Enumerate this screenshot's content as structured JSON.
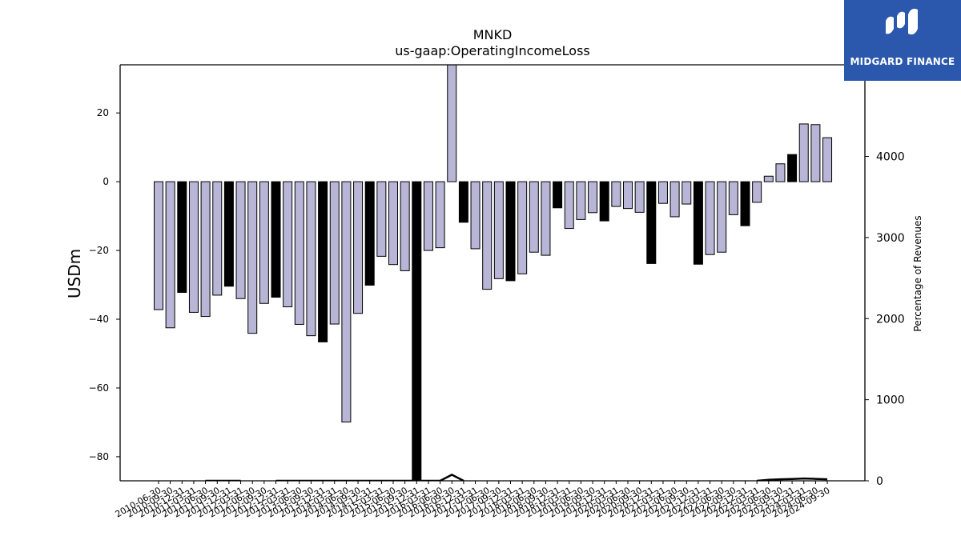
{
  "chart_data": {
    "type": "bar",
    "title": "MNKD",
    "subtitle": "us-gaap:OperatingIncomeLoss",
    "ylabel": "USDm",
    "y2label": "Percentage of Revenues",
    "ylim": [
      -87,
      34
    ],
    "y2lim": [
      0,
      5130
    ],
    "yticks": [
      -80,
      -60,
      -40,
      -20,
      0,
      20
    ],
    "y2ticks": [
      0,
      1000,
      2000,
      3000,
      4000
    ],
    "colors": {
      "quarter": "#b8b5d6",
      "annual": "#000000",
      "edge": "#000000",
      "line": "#000000"
    },
    "categories": [
      "2010-06-30",
      "2010-09-30",
      "2010-12-31",
      "2011-03-31",
      "2011-06-30",
      "2011-09-30",
      "2011-12-31",
      "2012-03-31",
      "2012-06-30",
      "2012-09-30",
      "2012-12-31",
      "2013-03-31",
      "2013-06-30",
      "2013-09-30",
      "2013-12-31",
      "2014-03-31",
      "2014-06-30",
      "2014-09-30",
      "2014-12-31",
      "2015-03-31",
      "2015-06-30",
      "2015-09-30",
      "2015-12-31",
      "2016-03-31",
      "2016-06-30",
      "2016-09-30",
      "2016-12-31",
      "2017-03-31",
      "2017-06-30",
      "2017-09-30",
      "2017-12-31",
      "2018-03-31",
      "2018-06-30",
      "2018-09-30",
      "2018-12-31",
      "2019-03-31",
      "2019-06-30",
      "2019-09-30",
      "2019-12-31",
      "2020-03-31",
      "2020-06-30",
      "2020-09-30",
      "2020-12-31",
      "2021-03-31",
      "2021-06-30",
      "2021-09-30",
      "2021-12-31",
      "2022-03-31",
      "2022-06-30",
      "2022-09-30",
      "2022-12-31",
      "2023-03-31",
      "2023-06-30",
      "2023-09-30",
      "2023-12-31",
      "2024-03-31",
      "2024-06-30",
      "2024-09-30"
    ],
    "values": [
      -37.2,
      -42.5,
      -32.2,
      -38,
      -39.2,
      -33,
      -30.4,
      -34,
      -44.1,
      -35.4,
      -33.6,
      -36.4,
      -41.5,
      -44.8,
      -46.6,
      -41.4,
      -69.9,
      -38.3,
      -30.1,
      -21.7,
      -24.1,
      -25.9,
      -92,
      -20,
      -19.2,
      34,
      -11.8,
      -19.5,
      -31.3,
      -28.2,
      -28.8,
      -26.8,
      -20.5,
      -21.4,
      -7.6,
      -13.6,
      -11,
      -9,
      -11.4,
      -7.2,
      -7.8,
      -8.9,
      -23.8,
      -6.3,
      -10.2,
      -6.5,
      -24,
      -21.2,
      -20.5,
      -9.6,
      -12.8,
      -6,
      1.6,
      5.2,
      7.9,
      16.8,
      16.6,
      12.8
    ],
    "is_annual": [
      false,
      false,
      true,
      false,
      false,
      false,
      true,
      false,
      false,
      false,
      true,
      false,
      false,
      false,
      true,
      false,
      false,
      false,
      true,
      false,
      false,
      false,
      true,
      false,
      false,
      false,
      true,
      false,
      false,
      false,
      true,
      false,
      false,
      false,
      true,
      false,
      false,
      false,
      true,
      false,
      false,
      false,
      true,
      false,
      false,
      false,
      true,
      false,
      false,
      false,
      true,
      false,
      false,
      false,
      true,
      false,
      false,
      false
    ],
    "line_series": [
      null,
      null,
      0,
      null,
      0,
      0,
      0,
      0,
      null,
      null,
      0,
      0,
      0,
      0,
      0,
      0,
      0,
      0,
      0,
      0,
      0,
      0,
      0,
      0,
      0,
      75,
      0,
      null,
      null,
      null,
      null,
      null,
      null,
      null,
      null,
      null,
      null,
      null,
      null,
      null,
      null,
      null,
      null,
      null,
      null,
      null,
      null,
      null,
      null,
      null,
      null,
      0,
      12,
      18,
      22,
      28,
      24,
      18
    ]
  },
  "logo": {
    "text": "MIDGARD FINANCE"
  }
}
